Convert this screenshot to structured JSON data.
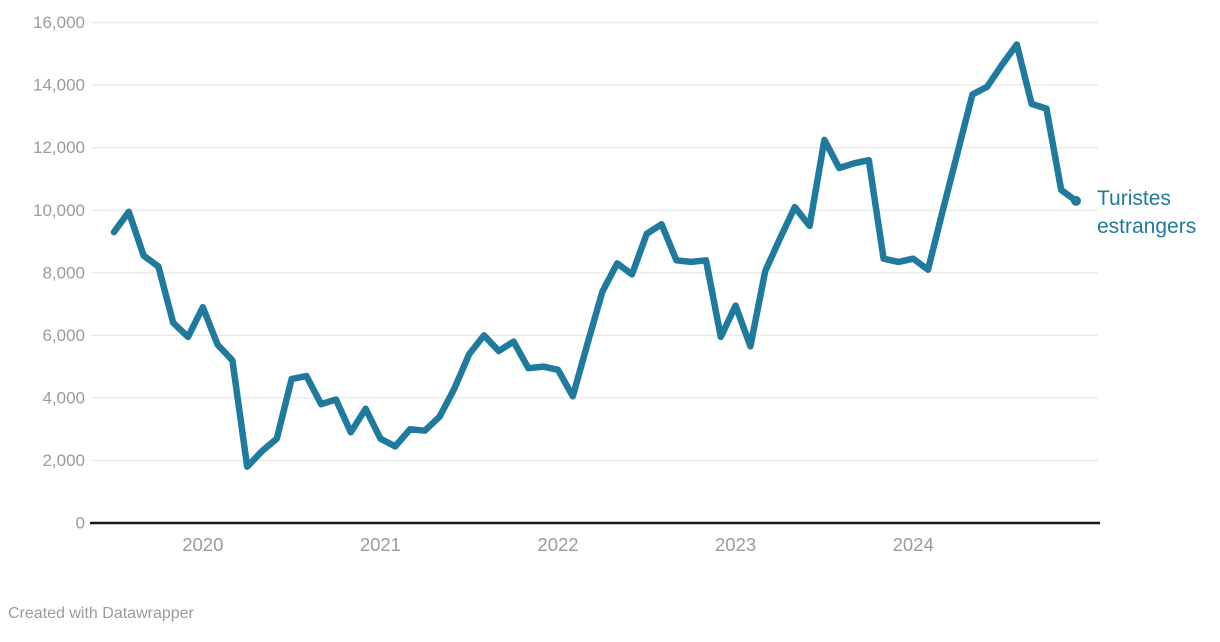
{
  "chart": {
    "series_label": "Turistes estrangers",
    "line_color": "#1f7a9d",
    "label_color": "#1f7a9d",
    "grid_color": "#e8e8e8",
    "axis_color": "#1a1a1a",
    "tick_label_color": "#9b9b9b",
    "background": "#ffffff"
  },
  "chart_data": {
    "type": "line",
    "title": "",
    "xlabel": "",
    "ylabel": "",
    "grid": "horizontal",
    "ylim": [
      0,
      16000
    ],
    "yticks": [
      0,
      2000,
      4000,
      6000,
      8000,
      10000,
      12000,
      14000,
      16000
    ],
    "ytick_labels": [
      "0",
      "2,000",
      "4,000",
      "6,000",
      "8,000",
      "10,000",
      "12,000",
      "14,000",
      "16,000"
    ],
    "xtick_labels": [
      "2020",
      "2021",
      "2022",
      "2023",
      "2024"
    ],
    "xtick_month_keys": [
      "2020-01",
      "2021-01",
      "2022-01",
      "2023-01",
      "2024-01"
    ],
    "legend_position": "end-of-line",
    "x": [
      "2019-07",
      "2019-08",
      "2019-09",
      "2019-10",
      "2019-11",
      "2019-12",
      "2020-01",
      "2020-02",
      "2020-03",
      "2020-04",
      "2020-05",
      "2020-06",
      "2020-07",
      "2020-08",
      "2020-09",
      "2020-10",
      "2020-11",
      "2020-12",
      "2021-01",
      "2021-02",
      "2021-03",
      "2021-04",
      "2021-05",
      "2021-06",
      "2021-07",
      "2021-08",
      "2021-09",
      "2021-10",
      "2021-11",
      "2021-12",
      "2022-01",
      "2022-02",
      "2022-03",
      "2022-04",
      "2022-05",
      "2022-06",
      "2022-07",
      "2022-08",
      "2022-09",
      "2022-10",
      "2022-11",
      "2022-12",
      "2023-01",
      "2023-02",
      "2023-03",
      "2023-04",
      "2023-05",
      "2023-06",
      "2023-07",
      "2023-08",
      "2023-09",
      "2023-10",
      "2023-11",
      "2023-12",
      "2024-01",
      "2024-02",
      "2024-03",
      "2024-04",
      "2024-05",
      "2024-06",
      "2024-07",
      "2024-08",
      "2024-09",
      "2024-10",
      "2024-11",
      "2024-12"
    ],
    "series": [
      {
        "name": "Turistes estrangers",
        "values": [
          9300,
          9950,
          8550,
          8200,
          6400,
          5950,
          6900,
          5700,
          5200,
          1800,
          2300,
          2700,
          4600,
          4700,
          3800,
          3950,
          2900,
          3650,
          2700,
          2450,
          3000,
          2950,
          3400,
          4300,
          5400,
          6000,
          5500,
          5800,
          4950,
          5000,
          4900,
          4050,
          5750,
          7400,
          8300,
          7950,
          9250,
          9550,
          8400,
          8350,
          8400,
          5950,
          6950,
          5650,
          8050,
          9100,
          10100,
          9500,
          12250,
          11350,
          11500,
          11600,
          8450,
          8350,
          8450,
          8100,
          10000,
          11850,
          13700,
          13950,
          14650,
          15300,
          13400,
          13250,
          10650,
          10300
        ]
      }
    ]
  },
  "footer": {
    "credit": "Created with Datawrapper"
  }
}
